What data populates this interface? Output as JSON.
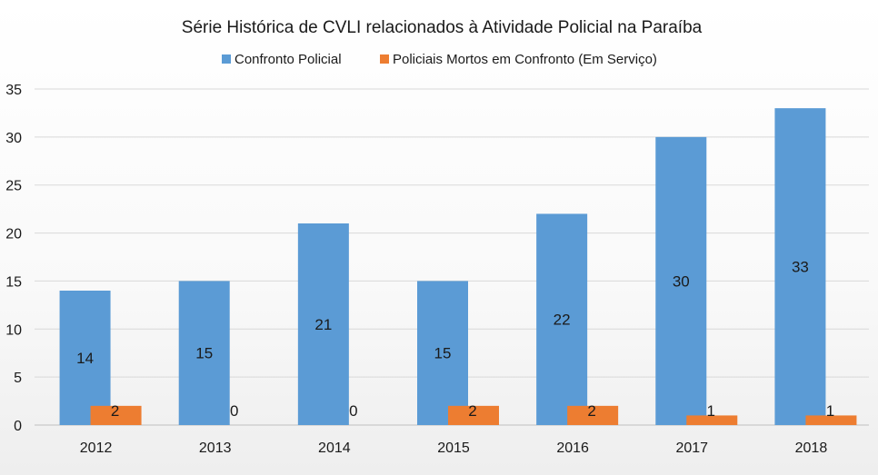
{
  "chart_data": {
    "type": "bar",
    "title": "Série Histórica de CVLI relacionados à Atividade Policial na Paraíba",
    "xlabel": "",
    "ylabel": "",
    "categories": [
      "2012",
      "2013",
      "2014",
      "2015",
      "2016",
      "2017",
      "2018"
    ],
    "ylim": [
      0,
      35
    ],
    "yticks": [
      0,
      5,
      10,
      15,
      20,
      25,
      30,
      35
    ],
    "grid": true,
    "legend_position": "top-center",
    "series": [
      {
        "name": "Confronto Policial",
        "color": "#5b9bd5",
        "values": [
          14,
          15,
          21,
          15,
          22,
          30,
          33
        ]
      },
      {
        "name": "Policiais Mortos em Confronto (Em Serviço)",
        "color": "#ed7d31",
        "values": [
          2,
          0,
          0,
          2,
          2,
          1,
          1
        ]
      }
    ]
  }
}
